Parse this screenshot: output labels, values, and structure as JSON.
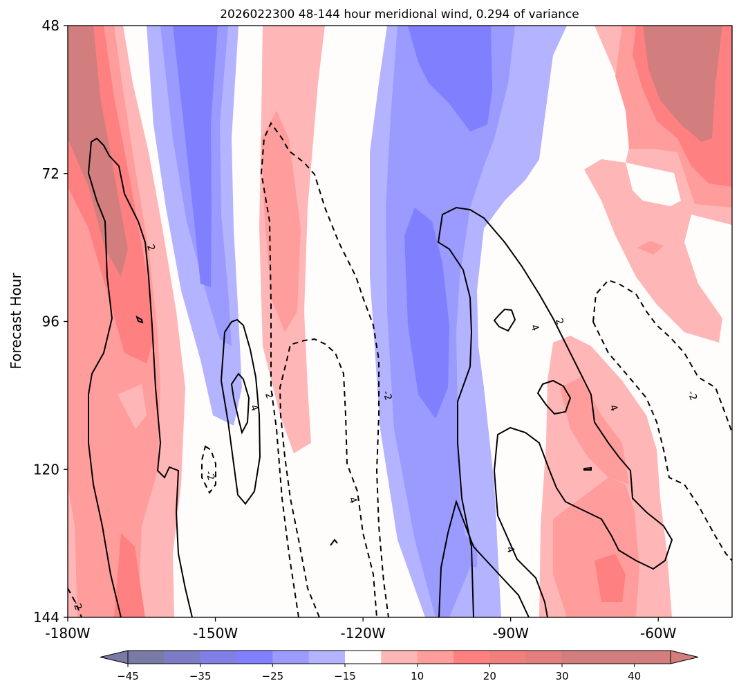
{
  "chart_data": {
    "type": "contour",
    "title": "2026022300 48-144 hour meridional wind, 0.294 of variance",
    "xlabel": "",
    "ylabel": "Forecast Hour",
    "xlim": [
      -180,
      -45
    ],
    "ylim": [
      48,
      144
    ],
    "y_inverted": true,
    "x_ticks": [
      -180,
      -150,
      -120,
      -90,
      -60
    ],
    "x_tick_labels": [
      "-180W",
      "-150W",
      "-120W",
      "-90W",
      "-60W"
    ],
    "y_ticks": [
      48,
      72,
      96,
      120,
      144
    ],
    "y_tick_labels": [
      "48",
      "72",
      "96",
      "120",
      "144"
    ],
    "colorbar": {
      "orientation": "horizontal",
      "levels": [
        -45,
        -40,
        -35,
        -30,
        -25,
        -20,
        -15,
        -10,
        10,
        15,
        20,
        25,
        30,
        35,
        40,
        45
      ],
      "tick_values": [
        -45,
        -35,
        -25,
        -15,
        10,
        20,
        30,
        40
      ],
      "tick_labels": [
        "−45",
        "−35",
        "−25",
        "−15",
        "10",
        "20",
        "30",
        "40"
      ],
      "colors": [
        "#7a7aa6",
        "#7c7cc6",
        "#7f7fe5",
        "#8080ff",
        "#9a9aff",
        "#b3b3ff",
        "#fffcfc",
        "#ffb6b6",
        "#ff9d9d",
        "#ff8080",
        "#f27e7e",
        "#e27e7e",
        "#d27e7e"
      ],
      "extend": "both"
    },
    "shaded_bands": [
      {
        "name": "pos-band-dateline",
        "lon_range": [
          -180,
          -160
        ],
        "peak": 35
      },
      {
        "name": "neg-band-1",
        "lon_range": [
          -160,
          -140
        ],
        "peak": -25
      },
      {
        "name": "pos-band-2",
        "lon_range": [
          -140,
          -125
        ],
        "peak": 20
      },
      {
        "name": "neg-band-3",
        "lon_range": [
          -110,
          -85
        ],
        "peak": -25
      },
      {
        "name": "pos-band-east",
        "lon_range": [
          -80,
          -55
        ],
        "peak": 20
      },
      {
        "name": "pos-band-ne",
        "lon_range": [
          -70,
          -45
        ],
        "peak": 35
      }
    ],
    "contour_levels": [
      -4,
      -2,
      2,
      4
    ],
    "contour_labels": [
      {
        "text": "2",
        "lon": -163,
        "hour": 84
      },
      {
        "text": "2",
        "lon": -139,
        "hour": 108
      },
      {
        "text": "4",
        "lon": -142,
        "hour": 110
      },
      {
        "text": "-2",
        "lon": -115,
        "hour": 108
      },
      {
        "text": "4",
        "lon": -122,
        "hour": 125
      },
      {
        "text": "-2",
        "lon": -151,
        "hour": 121
      },
      {
        "text": "-2",
        "lon": -178,
        "hour": 142
      },
      {
        "text": "4",
        "lon": -85,
        "hour": 97
      },
      {
        "text": "2",
        "lon": -80,
        "hour": 96
      },
      {
        "text": "4",
        "lon": -69,
        "hour": 110
      },
      {
        "text": "-2",
        "lon": -53,
        "hour": 108
      },
      {
        "text": "4",
        "lon": -90,
        "hour": 133
      }
    ]
  }
}
